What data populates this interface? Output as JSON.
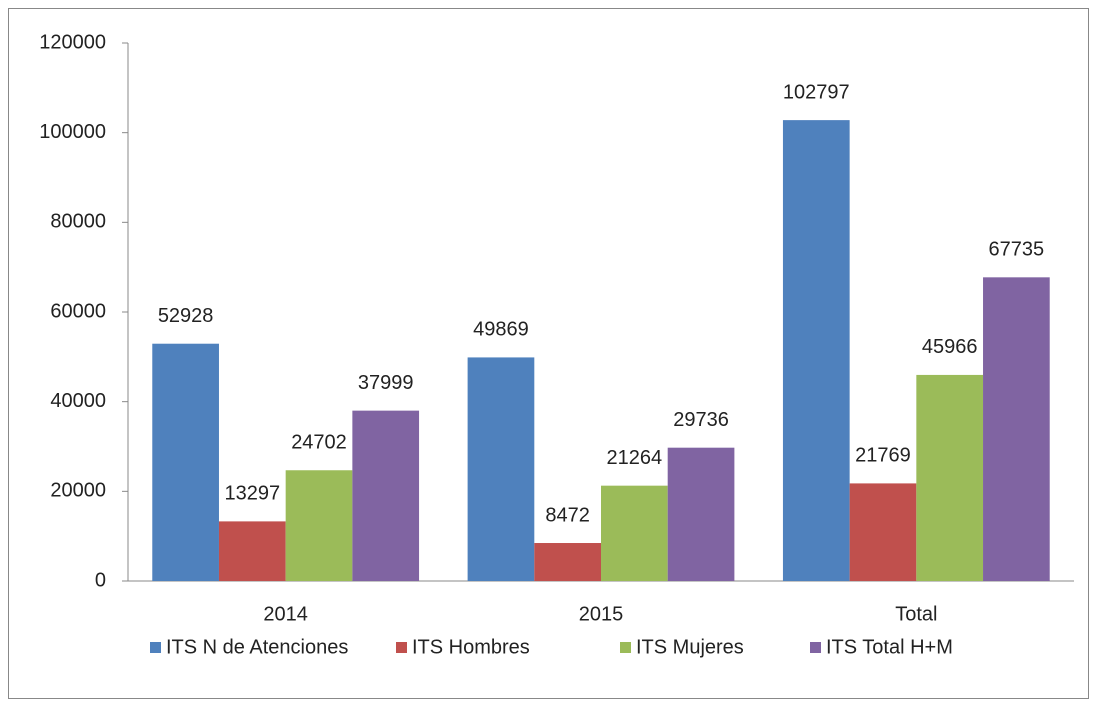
{
  "chart_data": {
    "type": "bar",
    "categories": [
      "2014",
      "2015",
      "Total"
    ],
    "series": [
      {
        "name": "ITS N de Atenciones",
        "color": "#4f81bd",
        "values": [
          52928,
          49869,
          102797
        ]
      },
      {
        "name": "ITS Hombres",
        "color": "#c0504d",
        "values": [
          13297,
          8472,
          21769
        ]
      },
      {
        "name": "ITS Mujeres",
        "color": "#9bbb59",
        "values": [
          24702,
          21264,
          45966
        ]
      },
      {
        "name": "ITS Total H+M",
        "color": "#8064a2",
        "values": [
          37999,
          29736,
          67735
        ]
      }
    ],
    "ylim": [
      0,
      120000
    ],
    "yticks": [
      0,
      20000,
      40000,
      60000,
      80000,
      100000,
      120000
    ],
    "grid": false,
    "legend": "bottom",
    "data_labels": true
  }
}
